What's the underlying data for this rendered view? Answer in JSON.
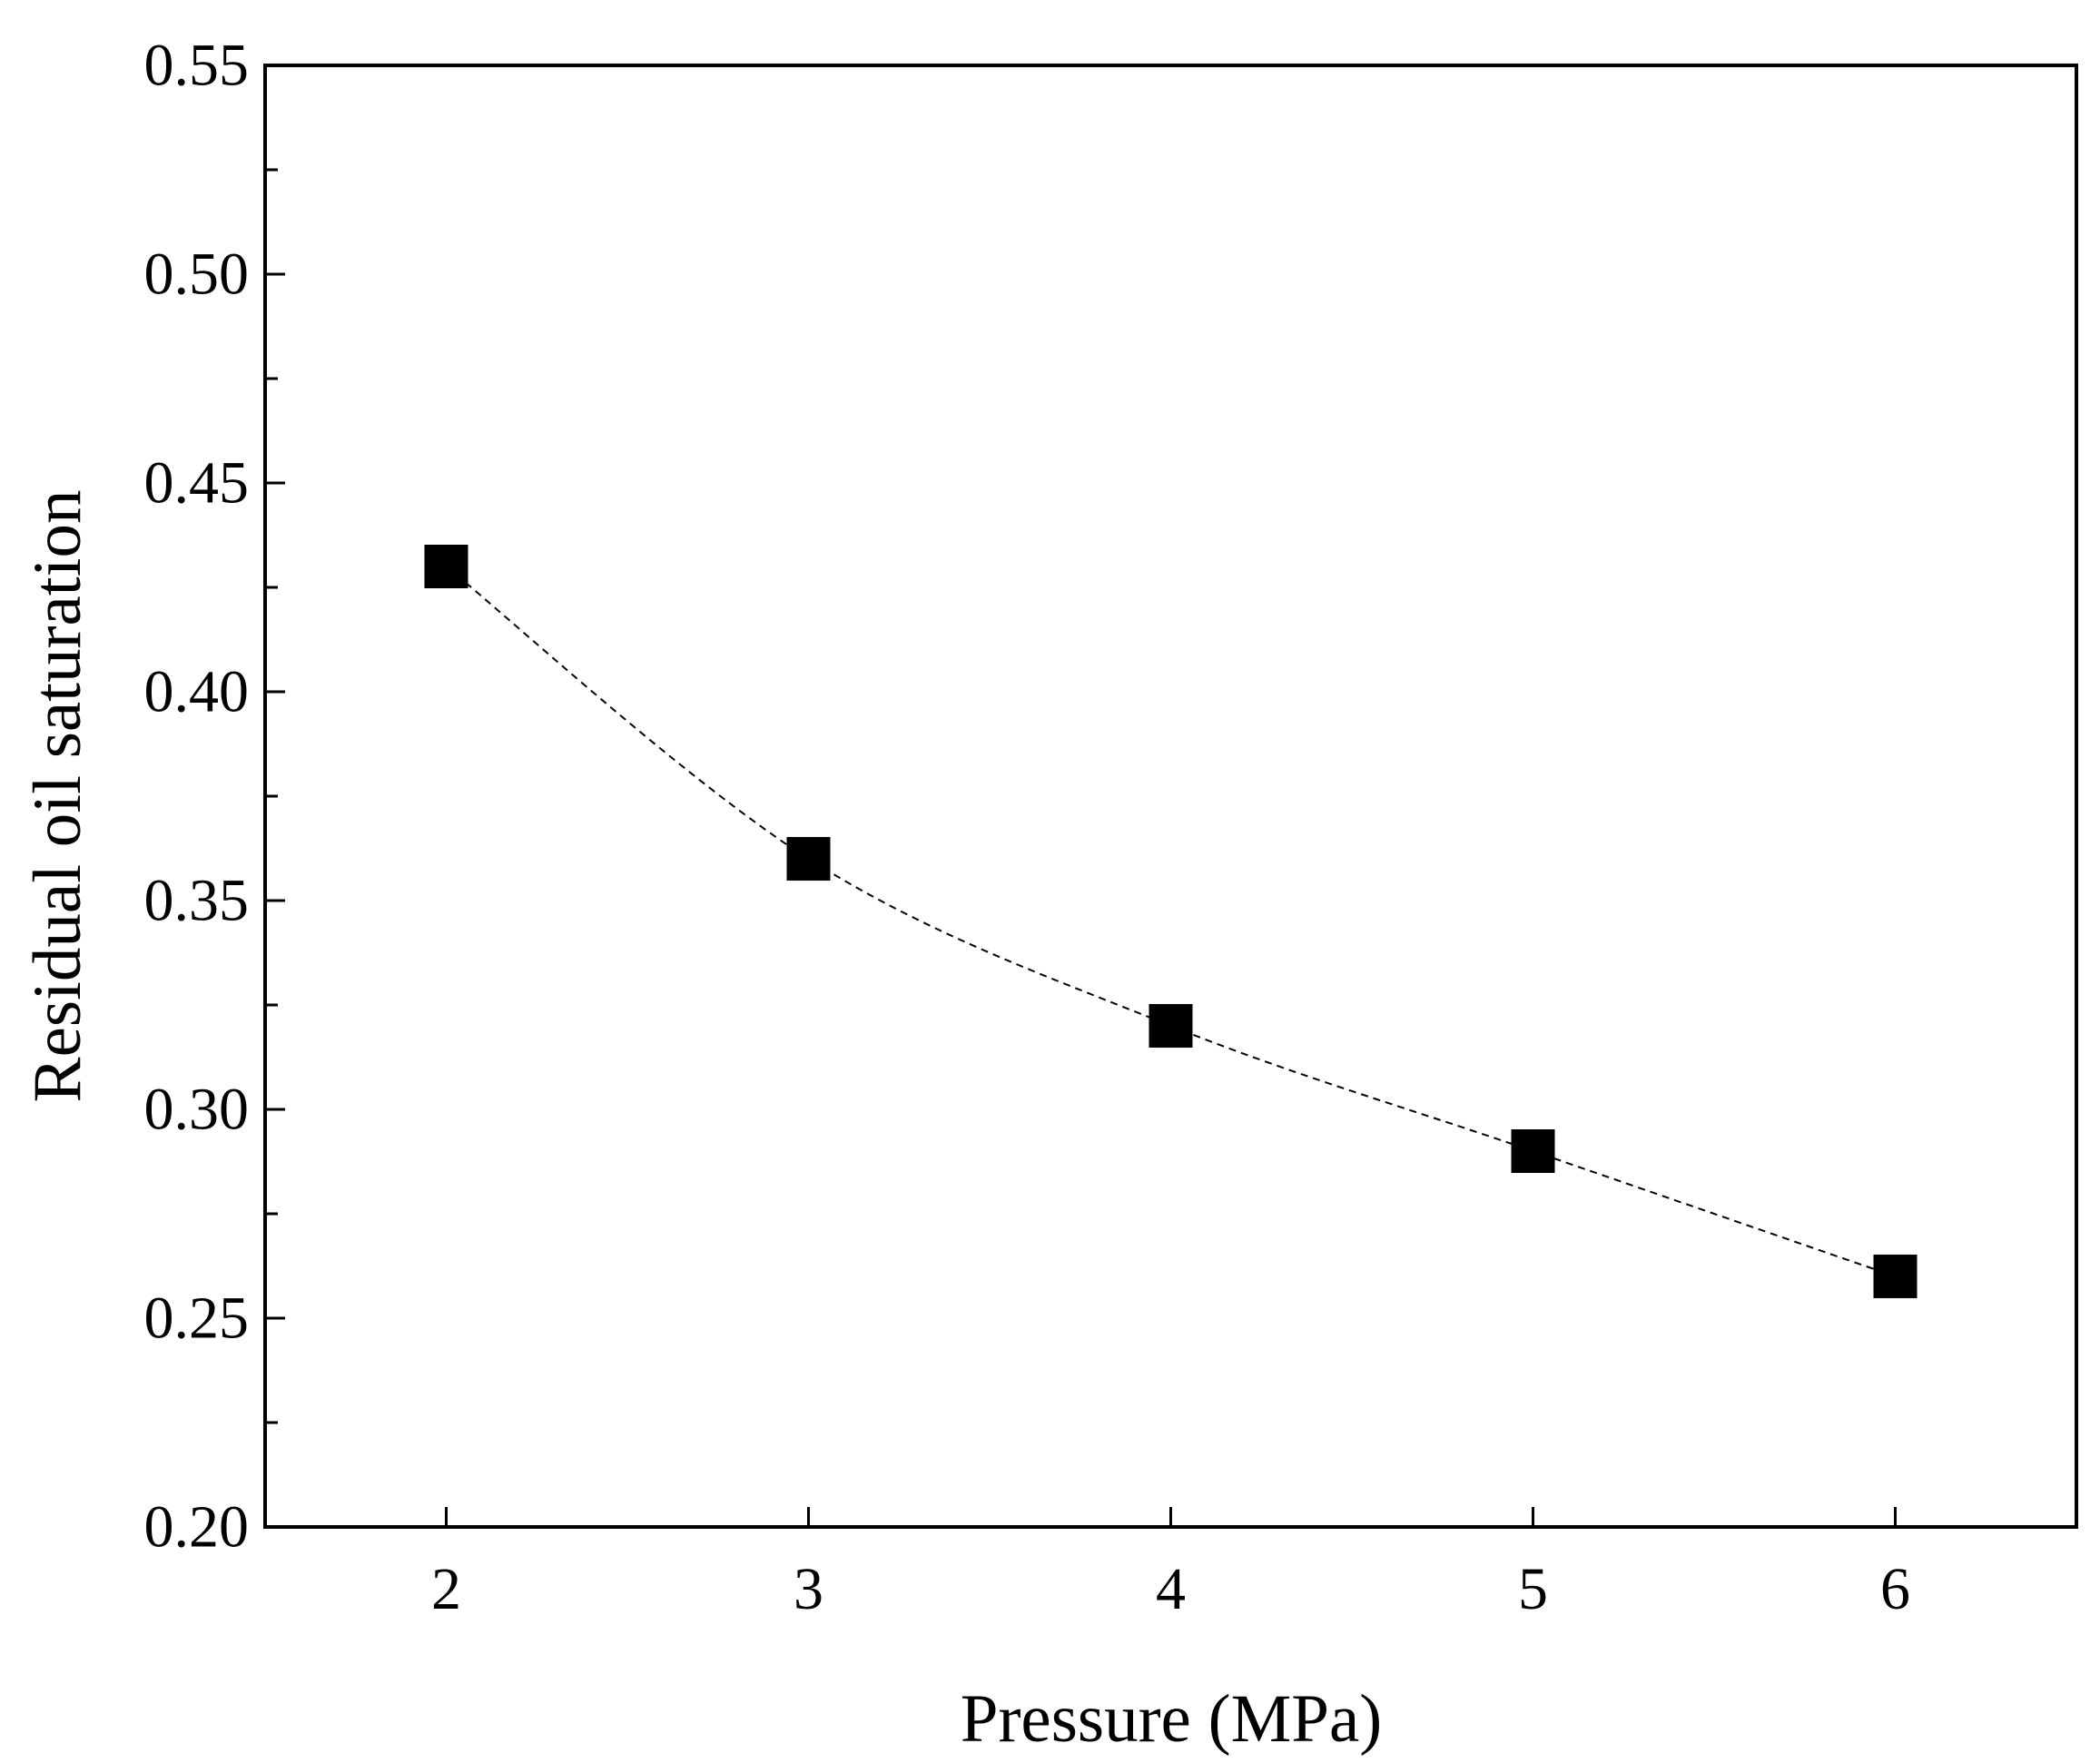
{
  "chart_data": {
    "type": "line",
    "title": "",
    "xlabel": "Pressure (MPa)",
    "ylabel": "Residual oil saturation",
    "xlim": [
      1.5,
      6.5
    ],
    "ylim": [
      0.2,
      0.55
    ],
    "xticks": [
      2,
      3,
      4,
      5,
      6
    ],
    "xtick_labels": [
      "2",
      "3",
      "4",
      "5",
      "6"
    ],
    "yticks": [
      0.2,
      0.25,
      0.3,
      0.35,
      0.4,
      0.45,
      0.5,
      0.55
    ],
    "ytick_labels": [
      "0.20",
      "0.25",
      "0.30",
      "0.35",
      "0.40",
      "0.45",
      "0.50",
      "0.55"
    ],
    "y_minor_step": 0.025,
    "grid": false,
    "series": [
      {
        "name": "Residual oil saturation",
        "marker": "square",
        "line_style": "dashed",
        "color": "#000000",
        "x": [
          2,
          3,
          4,
          5,
          6
        ],
        "y": [
          0.43,
          0.36,
          0.32,
          0.29,
          0.26
        ]
      }
    ]
  }
}
